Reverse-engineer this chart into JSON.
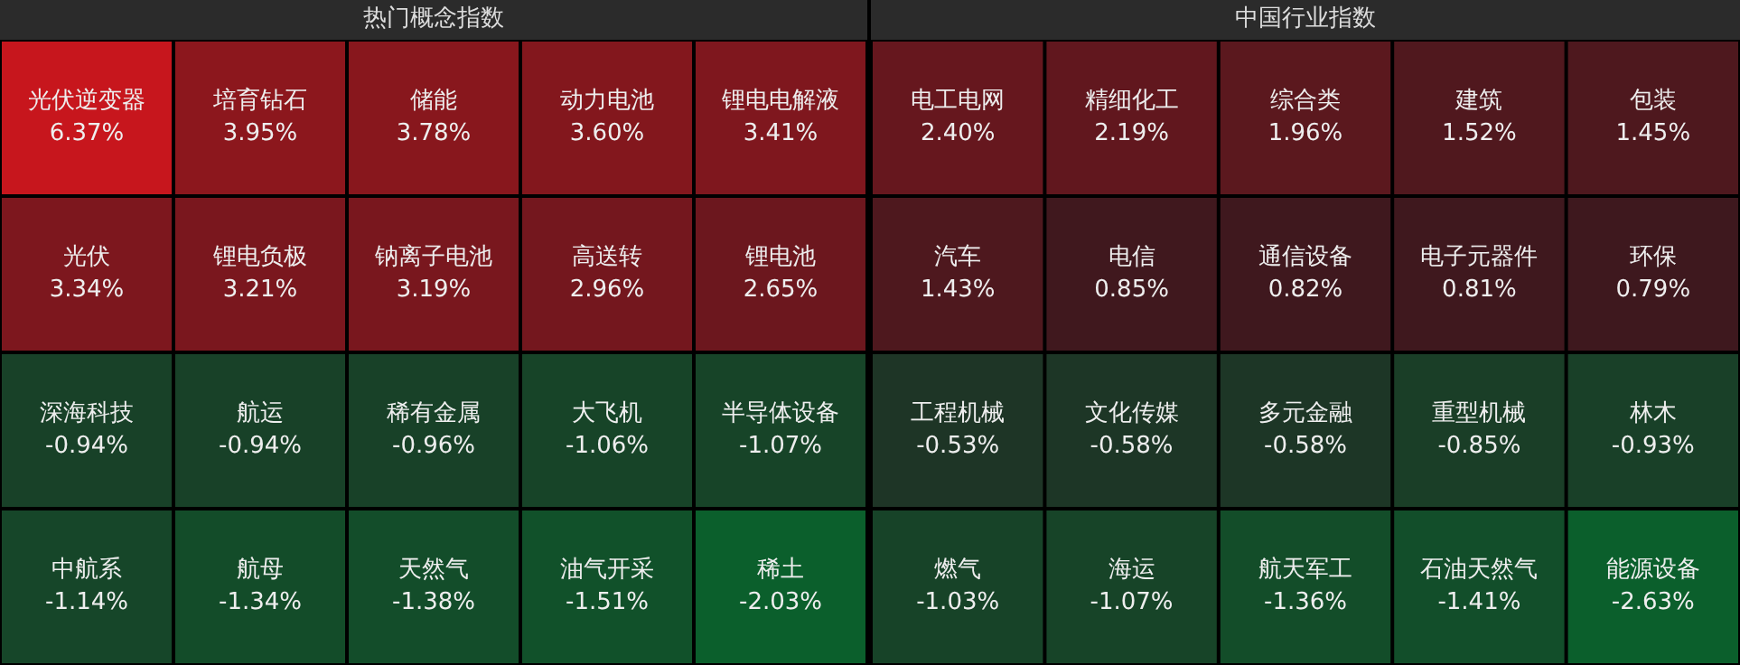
{
  "chart_data": [
    {
      "type": "other",
      "title": "热门概念指数",
      "categories": [
        "光伏逆变器",
        "培育钻石",
        "储能",
        "动力电池",
        "锂电电解液",
        "光伏",
        "锂电负极",
        "钠离子电池",
        "高送转",
        "锂电池",
        "深海科技",
        "航运",
        "稀有金属",
        "大飞机",
        "半导体设备",
        "中航系",
        "航母",
        "天然气",
        "油气开采",
        "稀土"
      ],
      "values": [
        6.37,
        3.95,
        3.78,
        3.6,
        3.41,
        3.34,
        3.21,
        3.19,
        2.96,
        2.65,
        -0.94,
        -0.94,
        -0.96,
        -1.06,
        -1.07,
        -1.14,
        -1.34,
        -1.38,
        -1.51,
        -2.03
      ],
      "value_labels": [
        "6.37%",
        "3.95%",
        "3.78%",
        "3.60%",
        "3.41%",
        "3.34%",
        "3.21%",
        "3.19%",
        "2.96%",
        "2.65%",
        "-0.94%",
        "-0.94%",
        "-0.96%",
        "-1.06%",
        "-1.07%",
        "-1.14%",
        "-1.34%",
        "-1.38%",
        "-1.51%",
        "-2.03%"
      ]
    },
    {
      "type": "other",
      "title": "中国行业指数",
      "categories": [
        "电工电网",
        "精细化工",
        "综合类",
        "建筑",
        "包装",
        "汽车",
        "电信",
        "通信设备",
        "电子元器件",
        "环保",
        "工程机械",
        "文化传媒",
        "多元金融",
        "重型机械",
        "林木",
        "燃气",
        "海运",
        "航天军工",
        "石油天然气",
        "能源设备"
      ],
      "values": [
        2.4,
        2.19,
        1.96,
        1.52,
        1.45,
        1.43,
        0.85,
        0.82,
        0.81,
        0.79,
        -0.53,
        -0.58,
        -0.58,
        -0.85,
        -0.93,
        -1.03,
        -1.07,
        -1.36,
        -1.41,
        -2.63
      ],
      "value_labels": [
        "2.40%",
        "2.19%",
        "1.96%",
        "1.52%",
        "1.45%",
        "1.43%",
        "0.85%",
        "0.82%",
        "0.81%",
        "0.79%",
        "-0.53%",
        "-0.58%",
        "-0.58%",
        "-0.85%",
        "-0.93%",
        "-1.03%",
        "-1.07%",
        "-1.36%",
        "-1.41%",
        "-2.63%"
      ]
    }
  ]
}
